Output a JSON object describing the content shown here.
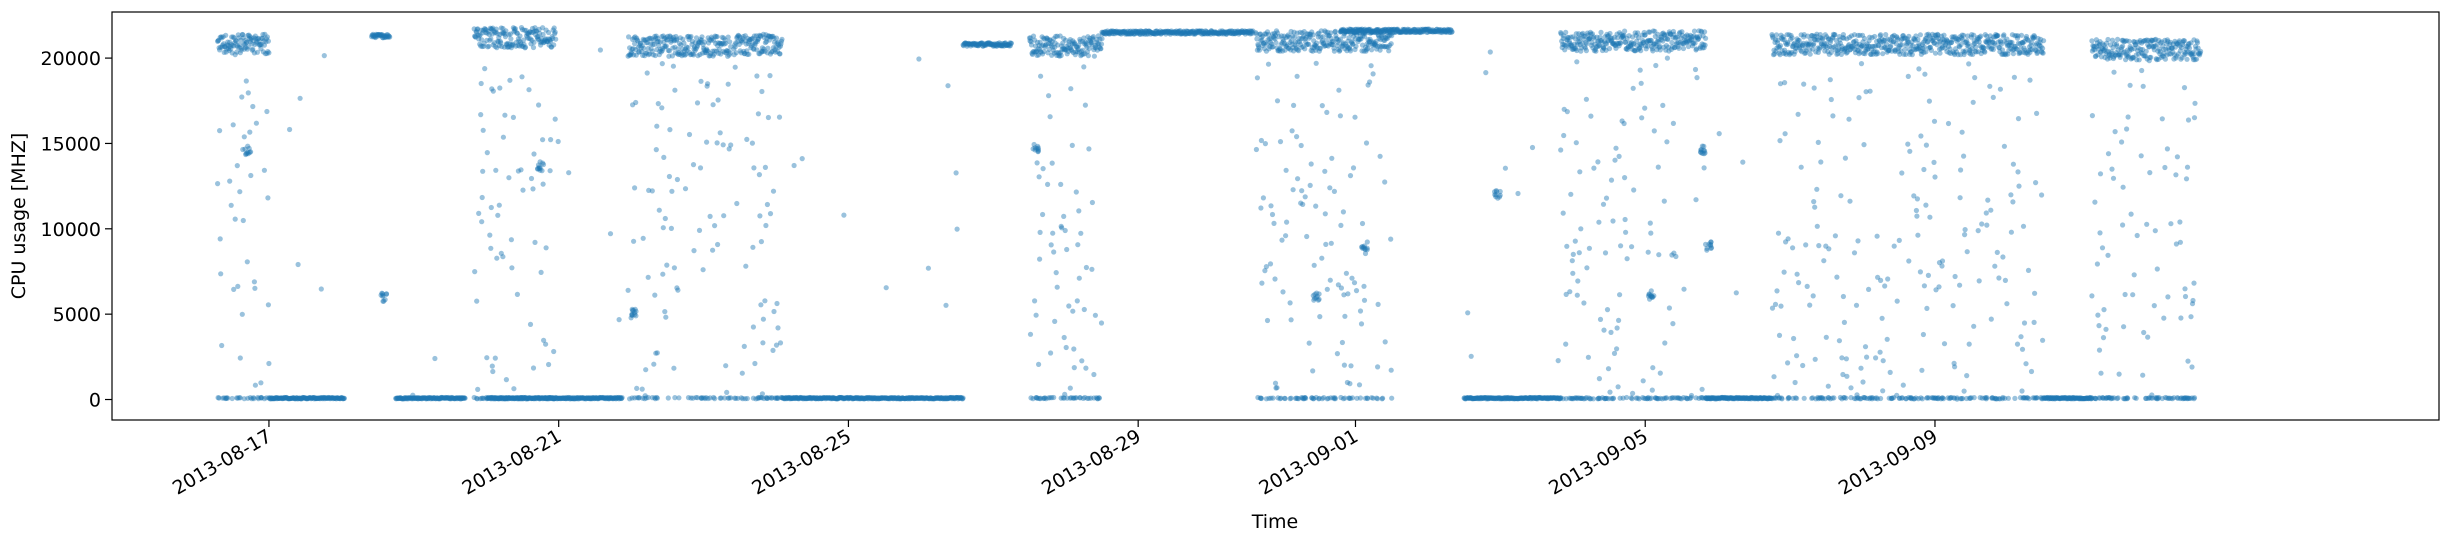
{
  "chart_data": {
    "type": "scatter",
    "title": "",
    "xlabel": "Time",
    "ylabel": "CPU usage [MHZ]",
    "x_axis_type": "date",
    "xlim": [
      "2013-08-14T20:00",
      "2013-09-15T23:00"
    ],
    "ylim": [
      -1200,
      22700
    ],
    "xticks": [
      "2013-08-17",
      "2013-08-21",
      "2013-08-25",
      "2013-08-29",
      "2013-09-01",
      "2013-09-05",
      "2013-09-09"
    ],
    "xtick_labels": [
      "2013-08-17",
      "2013-08-21",
      "2013-08-25",
      "2013-08-29",
      "2013-09-01",
      "2013-09-05",
      "2013-09-09"
    ],
    "yticks": [
      0,
      5000,
      10000,
      15000,
      20000
    ],
    "ytick_labels": [
      "0",
      "5000",
      "10000",
      "15000",
      "20000"
    ],
    "grid": false,
    "legend": "none",
    "marker_color": "#1f77b4",
    "marker_opacity": 0.45,
    "series": [
      {
        "segments": [
          {
            "start": "2013-08-16T07:00",
            "end": "2013-08-17T00:00",
            "pattern": "high",
            "level": 20800
          },
          {
            "start": "2013-08-17T00:00",
            "end": "2013-08-18T01:00",
            "pattern": "low"
          },
          {
            "start": "2013-08-18T10:00",
            "end": "2013-08-18T16:00",
            "pattern": "flat",
            "level": 21300
          },
          {
            "start": "2013-08-18T18:00",
            "end": "2013-08-19T17:00",
            "pattern": "low"
          },
          {
            "start": "2013-08-19T20:00",
            "end": "2013-08-20T23:00",
            "pattern": "high",
            "level": 21200
          },
          {
            "start": "2013-08-20T00:00",
            "end": "2013-08-21T21:00",
            "pattern": "low"
          },
          {
            "start": "2013-08-21T23:00",
            "end": "2013-08-23T09:00",
            "pattern": "high",
            "level": 20700
          },
          {
            "start": "2013-08-23T10:00",
            "end": "2013-08-24T02:00",
            "pattern": "high",
            "level": 20800
          },
          {
            "start": "2013-08-24T02:00",
            "end": "2013-08-26T14:00",
            "pattern": "low"
          },
          {
            "start": "2013-08-26T14:00",
            "end": "2013-08-27T06:00",
            "pattern": "flat",
            "level": 20800
          },
          {
            "start": "2013-08-27T12:00",
            "end": "2013-08-28T12:00",
            "pattern": "high",
            "level": 20700
          },
          {
            "start": "2013-08-28T12:00",
            "end": "2013-08-30T14:00",
            "pattern": "flat",
            "level": 21500
          },
          {
            "start": "2013-08-30T15:00",
            "end": "2013-09-01T12:00",
            "pattern": "high",
            "level": 21000
          },
          {
            "start": "2013-08-31T19:00",
            "end": "2013-09-02T08:00",
            "pattern": "flat",
            "level": 21600
          },
          {
            "start": "2013-09-02T12:00",
            "end": "2013-09-03T20:00",
            "pattern": "low"
          },
          {
            "start": "2013-09-03T20:00",
            "end": "2013-09-05T20:00",
            "pattern": "high",
            "level": 21000
          },
          {
            "start": "2013-09-05T20:00",
            "end": "2013-09-06T18:00",
            "pattern": "low"
          },
          {
            "start": "2013-09-06T18:00",
            "end": "2013-09-10T12:00",
            "pattern": "high",
            "level": 20800
          },
          {
            "start": "2013-09-10T12:00",
            "end": "2013-09-11T04:00",
            "pattern": "low"
          },
          {
            "start": "2013-09-11T04:00",
            "end": "2013-09-12T16:00",
            "pattern": "high",
            "level": 20500
          }
        ],
        "clusters": [
          {
            "x": "2013-08-16T17:00",
            "y": 14600
          },
          {
            "x": "2013-08-18T14:00",
            "y": 6000
          },
          {
            "x": "2013-08-20T18:00",
            "y": 13600
          },
          {
            "x": "2013-08-22T01:00",
            "y": 5100
          },
          {
            "x": "2013-08-27T14:00",
            "y": 14700
          },
          {
            "x": "2013-08-31T11:00",
            "y": 6000
          },
          {
            "x": "2013-09-01T03:00",
            "y": 9000
          },
          {
            "x": "2013-09-02T23:00",
            "y": 12000
          },
          {
            "x": "2013-09-05T02:00",
            "y": 6000
          },
          {
            "x": "2013-09-05T19:00",
            "y": 14600
          },
          {
            "x": "2013-09-05T21:00",
            "y": 9000
          }
        ]
      }
    ]
  }
}
